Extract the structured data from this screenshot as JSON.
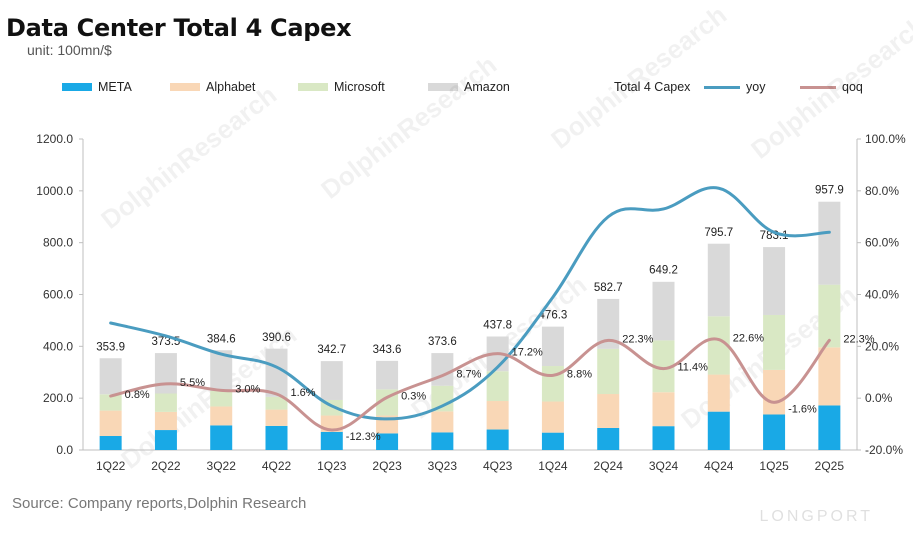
{
  "title": "Data Center Total 4 Capex",
  "unit": "unit: 100mn/$",
  "source": "Source: Company reports,Dolphin Research",
  "watermark": "DolphinResearch",
  "logo_text": "LONGPORT",
  "colors": {
    "META": "#19a9e6",
    "Alphabet": "#f9d7b6",
    "Microsoft": "#d9e8c4",
    "Amazon": "#d9d9d9",
    "yoy": "#4a9cc0",
    "qoq": "#c89291",
    "axis": "#bfbfbf"
  },
  "legend": [
    {
      "label": "META",
      "kind": "box",
      "color": "#19a9e6"
    },
    {
      "label": "Alphabet",
      "kind": "box",
      "color": "#f9d7b6"
    },
    {
      "label": "Microsoft",
      "kind": "box",
      "color": "#d9e8c4"
    },
    {
      "label": "Amazon",
      "kind": "box",
      "color": "#d9d9d9"
    },
    {
      "label": "Total 4 Capex",
      "kind": "none",
      "color": ""
    },
    {
      "label": "yoy",
      "kind": "line",
      "color": "#4a9cc0"
    },
    {
      "label": "qoq",
      "kind": "line",
      "color": "#c89291"
    }
  ],
  "chart_data": {
    "type": "bar",
    "title": "Data Center Total 4 Capex",
    "categories": [
      "1Q22",
      "2Q22",
      "3Q22",
      "4Q22",
      "1Q23",
      "2Q23",
      "3Q23",
      "4Q23",
      "1Q24",
      "2Q24",
      "3Q24",
      "4Q24",
      "1Q25",
      "2Q25"
    ],
    "series": [
      {
        "name": "META",
        "values": [
          54,
          77,
          95,
          93,
          70,
          64,
          68,
          79,
          67,
          85,
          92,
          148,
          137,
          172
        ]
      },
      {
        "name": "Alphabet",
        "values": [
          98,
          70,
          73,
          63,
          63,
          69,
          81,
          110,
          120,
          131,
          131,
          143,
          172,
          224
        ]
      },
      {
        "name": "Microsoft",
        "values": [
          63,
          71,
          60,
          49,
          60,
          101,
          99,
          115,
          137,
          174,
          200,
          225,
          212,
          242
        ]
      },
      {
        "name": "Amazon",
        "values": [
          139,
          156,
          157,
          186,
          150,
          110,
          126,
          134,
          152,
          193,
          226,
          280,
          262,
          320
        ]
      }
    ],
    "totals": {
      "name": "Total 4 Capex",
      "values": [
        353.9,
        373.5,
        384.6,
        390.6,
        342.7,
        343.6,
        373.6,
        437.8,
        476.3,
        582.7,
        649.2,
        795.7,
        783.1,
        957.9
      ]
    },
    "total_labels": [
      "353.9",
      "373.5",
      "384.6",
      "390.6",
      "342.7",
      "343.6",
      "373.6",
      "437.8",
      "476.3",
      "582.7",
      "649.2",
      "795.7",
      "783.1",
      "957.9"
    ],
    "lines": [
      {
        "name": "yoy",
        "axis": "right",
        "values": [
          29,
          24,
          17,
          12,
          -3,
          -8,
          -3,
          12,
          39,
          70,
          73,
          81,
          64,
          64
        ]
      },
      {
        "name": "qoq",
        "axis": "right",
        "values": [
          0.8,
          5.5,
          3.0,
          1.6,
          -12.3,
          0.3,
          8.7,
          17.2,
          8.8,
          22.3,
          11.4,
          22.6,
          -1.6,
          22.3
        ]
      }
    ],
    "qoq_labels": [
      "0.8%",
      "5.5%",
      "3.0%",
      "1.6%",
      "-12.3%",
      "0.3%",
      "8.7%",
      "17.2%",
      "8.8%",
      "22.3%",
      "11.4%",
      "22.6%",
      "-1.6%",
      "22.3%"
    ],
    "y_left": {
      "min": 0,
      "max": 1200,
      "ticks": [
        "0.0",
        "200.0",
        "400.0",
        "600.0",
        "800.0",
        "1000.0",
        "1200.0"
      ]
    },
    "y_right": {
      "min": -20,
      "max": 100,
      "ticks": [
        "-20.0%",
        "0.0%",
        "20.0%",
        "40.0%",
        "60.0%",
        "80.0%",
        "100.0%"
      ]
    },
    "legend_position": "top"
  }
}
